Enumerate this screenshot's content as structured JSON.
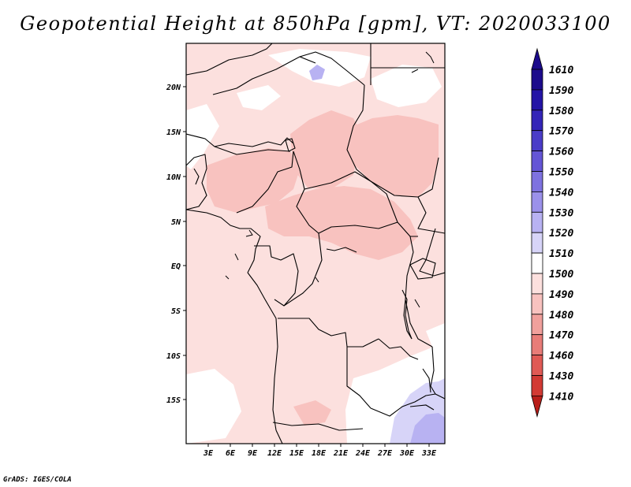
{
  "title": "Geopotential Height at 850hPa [gpm], VT: 2020033100",
  "credit": "GrADS: IGES/COLA",
  "axes": {
    "y_ticks": [
      "20N",
      "15N",
      "10N",
      "5N",
      "EQ",
      "5S",
      "10S",
      "15S"
    ],
    "x_ticks": [
      "3E",
      "6E",
      "9E",
      "12E",
      "15E",
      "18E",
      "21E",
      "24E",
      "27E",
      "30E",
      "33E"
    ]
  },
  "colorbar": {
    "levels": [
      {
        "label": "1610",
        "color": "#1c0b8c"
      },
      {
        "label": "1590",
        "color": "#2414a6"
      },
      {
        "label": "1580",
        "color": "#3425b8"
      },
      {
        "label": "1570",
        "color": "#4a3cc8"
      },
      {
        "label": "1560",
        "color": "#6455d6"
      },
      {
        "label": "1550",
        "color": "#7e72e0"
      },
      {
        "label": "1540",
        "color": "#9b91ea"
      },
      {
        "label": "1530",
        "color": "#b8b2f2"
      },
      {
        "label": "1520",
        "color": "#d7d4f8"
      },
      {
        "label": "1510",
        "color": "#ffffff"
      },
      {
        "label": "1500",
        "color": "#fce0de"
      },
      {
        "label": "1490",
        "color": "#f8c2bf"
      },
      {
        "label": "1480",
        "color": "#f0a09c"
      },
      {
        "label": "1470",
        "color": "#e87c78"
      },
      {
        "label": "1460",
        "color": "#e05a55"
      },
      {
        "label": "1430",
        "color": "#d23a34"
      },
      {
        "label": "1410",
        "color": "#b81e1a"
      }
    ],
    "bottom_color": "#b81e1a"
  }
}
